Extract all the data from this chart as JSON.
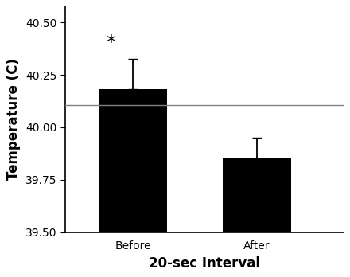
{
  "categories": [
    "Before",
    "After"
  ],
  "bar_tops": [
    40.18,
    39.855
  ],
  "errors_before": [
    0.0,
    0.145
  ],
  "errors_after": [
    0.095,
    0.095
  ],
  "baseline": 40.105,
  "bar_color": "#000000",
  "bar_width": 0.55,
  "bar_positions": [
    1.0,
    2.0
  ],
  "xlabel": "20-sec Interval",
  "ylabel": "Temperature (C)",
  "ymin": 39.5,
  "ymax": 40.575,
  "yticks": [
    39.5,
    39.75,
    40.0,
    40.25,
    40.5
  ],
  "xlim": [
    0.45,
    2.7
  ],
  "asterisk_x": 0.82,
  "asterisk_y": 40.355,
  "asterisk_fontsize": 17,
  "background_color": "#ffffff",
  "label_fontsize": 12,
  "tick_fontsize": 10,
  "error_capsize": 4,
  "error_linewidth": 1.3
}
